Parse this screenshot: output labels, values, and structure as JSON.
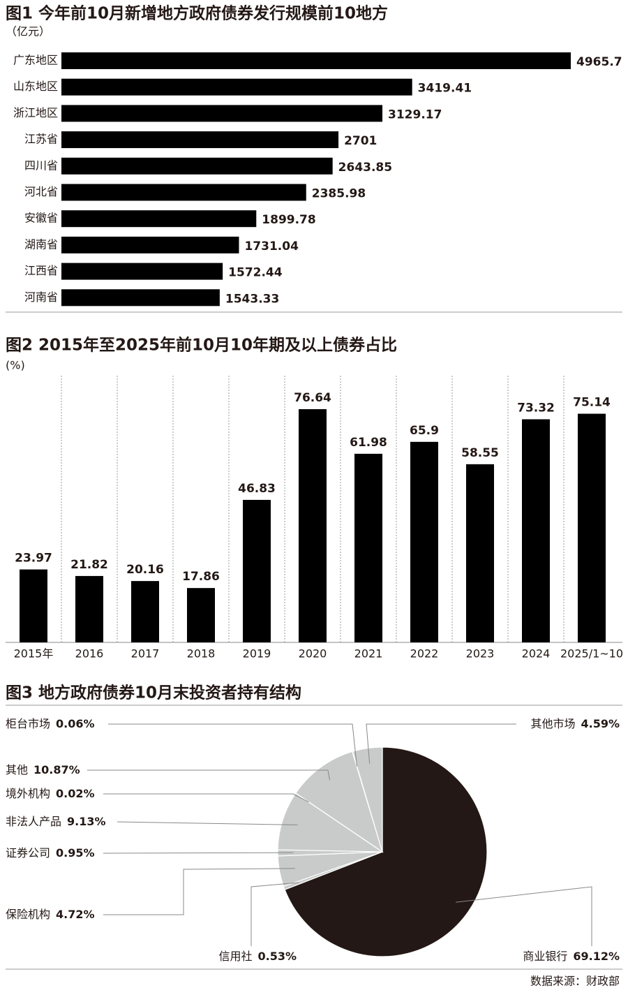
{
  "chart_data": [
    {
      "type": "hbar",
      "title": "图1 今年前10月新增地方政府债券发行规模前10地方",
      "unit": "（亿元）",
      "categories": [
        "广东地区",
        "山东地区",
        "浙江地区",
        "江苏省",
        "四川省",
        "河北省",
        "安徽省",
        "湖南省",
        "江西省",
        "河南省"
      ],
      "values": [
        4965.7,
        3419.41,
        3129.17,
        2701,
        2643.85,
        2385.98,
        1899.78,
        1731.04,
        1572.44,
        1543.33
      ],
      "color": "#000000"
    },
    {
      "type": "bar",
      "title": "图2 2015年至2025年前10月10年期及以上债券占比",
      "unit": "(%)",
      "categories": [
        "2015年",
        "2016",
        "2017",
        "2018",
        "2019",
        "2020",
        "2021",
        "2022",
        "2023",
        "2024",
        "2025/1~10"
      ],
      "values": [
        23.97,
        21.82,
        20.16,
        17.86,
        46.83,
        76.64,
        61.98,
        65.9,
        58.55,
        73.32,
        75.14
      ],
      "color": "#000000"
    },
    {
      "type": "pie",
      "title": "图3 地方政府债券10月末投资者持有结构",
      "categories": [
        "商业银行",
        "信用社",
        "保险机构",
        "证券公司",
        "非法人产品",
        "境外机构",
        "其他",
        "柜台市场",
        "其他市场"
      ],
      "values": [
        69.12,
        0.53,
        4.72,
        0.95,
        9.13,
        0.02,
        10.87,
        0.06,
        4.59
      ],
      "value_labels": [
        "69.12%",
        "0.53%",
        "4.72%",
        "0.95%",
        "9.13%",
        "0.02%",
        "10.87%",
        "0.06%",
        "4.59%"
      ],
      "colors": [
        "#231815",
        "#c9caca",
        "#c9caca",
        "#c9caca",
        "#c9caca",
        "#c9caca",
        "#c9caca",
        "#c9caca",
        "#c9caca"
      ]
    }
  ],
  "source": "数据来源：财政部"
}
